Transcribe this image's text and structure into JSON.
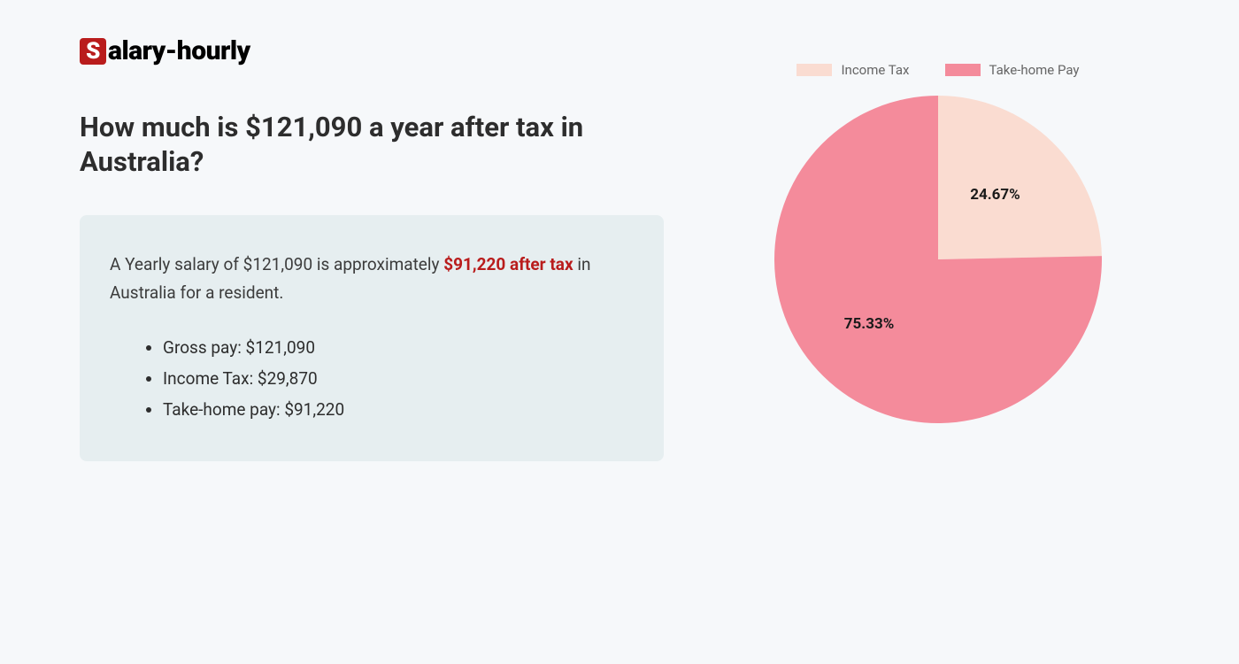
{
  "logo": {
    "badge_letter": "S",
    "rest": "alary-hourly",
    "badge_bg": "#b91c1c",
    "badge_fg": "#ffffff",
    "text_color": "#000000"
  },
  "heading": "How much is $121,090 a year after tax in Australia?",
  "summary": {
    "prefix": "A Yearly salary of $121,090 is approximately ",
    "highlight": "$91,220 after tax",
    "suffix": " in Australia for a resident."
  },
  "breakdown": [
    "Gross pay: $121,090",
    "Income Tax: $29,870",
    "Take-home pay: $91,220"
  ],
  "card_bg": "#e6eef0",
  "page_bg": "#f6f8fa",
  "chart": {
    "type": "pie",
    "diameter": 370,
    "slices": [
      {
        "label": "Income Tax",
        "value": 24.67,
        "display": "24.67%",
        "color": "#fadcd1"
      },
      {
        "label": "Take-home Pay",
        "value": 75.33,
        "display": "75.33%",
        "color": "#f48b9b"
      }
    ],
    "start_angle_deg": 0,
    "label_fontsize": 17,
    "label_fontweight": 700,
    "label_color": "#1a1a1a",
    "legend": {
      "swatch_width": 40,
      "swatch_height": 14,
      "label_fontsize": 15,
      "label_color": "#666666"
    }
  }
}
